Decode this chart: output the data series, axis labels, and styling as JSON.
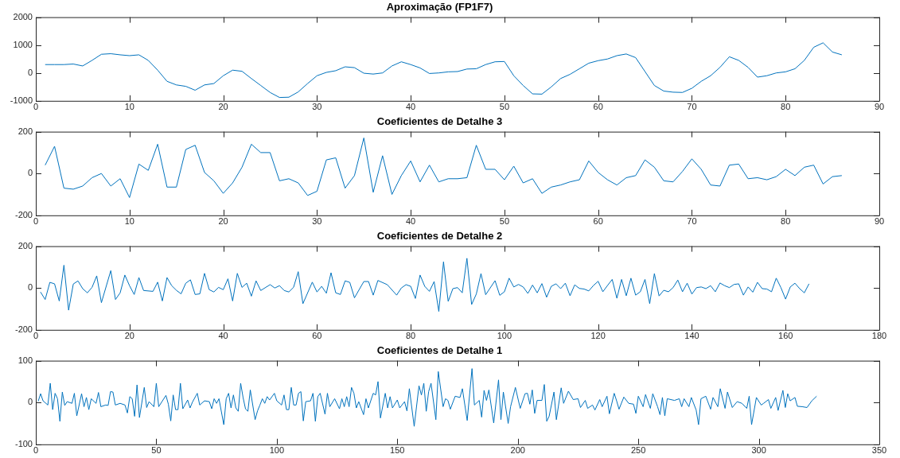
{
  "chart_data": [
    {
      "type": "line",
      "title": "Aproximação (FP1F7)",
      "color": "#0072bd",
      "xlim": [
        0,
        90
      ],
      "xticks": [
        0,
        10,
        20,
        30,
        40,
        50,
        60,
        70,
        80,
        90
      ],
      "ylim": [
        -1000,
        2000
      ],
      "yticks": [
        -1000,
        0,
        1000,
        2000
      ],
      "x": [
        1,
        2,
        3,
        4,
        5,
        6,
        7,
        8,
        9,
        10,
        11,
        12,
        13,
        14,
        15,
        16,
        17,
        18,
        19,
        20,
        21,
        22,
        23,
        24,
        25,
        26,
        27,
        28,
        29,
        30,
        31,
        32,
        33,
        34,
        35,
        36,
        37,
        38,
        39,
        40,
        41,
        42,
        43,
        44,
        45,
        46,
        47,
        48,
        49,
        50,
        51,
        52,
        53,
        54,
        55,
        56,
        57,
        58,
        59,
        60,
        61,
        62,
        63,
        64,
        65,
        66,
        67,
        68,
        69,
        70,
        71,
        72,
        73,
        74,
        75,
        76,
        77,
        78,
        79,
        80,
        81,
        82,
        83,
        84,
        85,
        86
      ],
      "values": [
        300,
        300,
        300,
        320,
        250,
        450,
        670,
        690,
        650,
        620,
        650,
        450,
        100,
        -300,
        -430,
        -480,
        -620,
        -430,
        -380,
        -100,
        100,
        60,
        -200,
        -450,
        -700,
        -880,
        -870,
        -680,
        -380,
        -100,
        20,
        80,
        220,
        190,
        -10,
        -40,
        0,
        250,
        400,
        300,
        180,
        -20,
        0,
        40,
        50,
        140,
        150,
        300,
        400,
        410,
        -100,
        -450,
        -750,
        -760,
        -500,
        -200,
        -50,
        150,
        350,
        440,
        500,
        620,
        680,
        550,
        50,
        -450,
        -650,
        -690,
        -700,
        -550,
        -300,
        -100,
        200,
        580,
        450,
        200,
        -150,
        -100,
        0,
        40,
        150,
        450,
        920,
        1080,
        750,
        650
      ]
    },
    {
      "type": "line",
      "title": "Coeficientes de Detalhe 3",
      "color": "#0072bd",
      "xlim": [
        0,
        90
      ],
      "xticks": [
        0,
        10,
        20,
        30,
        40,
        50,
        60,
        70,
        80,
        90
      ],
      "ylim": [
        -200,
        200
      ],
      "yticks": [
        -200,
        0,
        200
      ],
      "x": [
        1,
        2,
        3,
        4,
        5,
        6,
        7,
        8,
        9,
        10,
        11,
        12,
        13,
        14,
        15,
        16,
        17,
        18,
        19,
        20,
        21,
        22,
        23,
        24,
        25,
        26,
        27,
        28,
        29,
        30,
        31,
        32,
        33,
        34,
        35,
        36,
        37,
        38,
        39,
        40,
        41,
        42,
        43,
        44,
        45,
        46,
        47,
        48,
        49,
        50,
        51,
        52,
        53,
        54,
        55,
        56,
        57,
        58,
        59,
        60,
        61,
        62,
        63,
        64,
        65,
        66,
        67,
        68,
        69,
        70,
        71,
        72,
        73,
        74,
        75,
        76,
        77,
        78,
        79,
        80,
        81,
        82,
        83,
        84,
        85,
        86
      ],
      "values": [
        40,
        130,
        -70,
        -75,
        -60,
        -20,
        0,
        -60,
        -25,
        -115,
        45,
        15,
        140,
        -65,
        -65,
        115,
        135,
        5,
        -35,
        -95,
        -45,
        30,
        140,
        100,
        100,
        -35,
        -25,
        -45,
        -105,
        -85,
        65,
        75,
        -70,
        -10,
        170,
        -90,
        85,
        -100,
        -10,
        60,
        -40,
        40,
        -40,
        -25,
        -25,
        -20,
        135,
        20,
        20,
        -30,
        35,
        -45,
        -25,
        -95,
        -65,
        -55,
        -40,
        -30,
        60,
        5,
        -30,
        -55,
        -20,
        -10,
        65,
        30,
        -35,
        -40,
        10,
        70,
        20,
        -55,
        -60,
        40,
        45,
        -25,
        -20,
        -30,
        -15,
        20,
        -10,
        30,
        40,
        -50,
        -15,
        -10
      ]
    },
    {
      "type": "line",
      "title": "Coeficientes de Detalhe 2",
      "color": "#0072bd",
      "xlim": [
        0,
        180
      ],
      "xticks": [
        0,
        20,
        40,
        60,
        80,
        100,
        120,
        140,
        160,
        180
      ],
      "ylim": [
        -200,
        200
      ],
      "yticks": [
        -200,
        0,
        200
      ],
      "x": [
        1,
        2,
        3,
        4,
        5,
        6,
        7,
        8,
        9,
        10,
        11,
        12,
        13,
        14,
        16,
        17,
        18,
        19,
        20,
        21,
        22,
        23,
        25,
        26,
        27,
        28,
        29,
        30,
        31,
        32,
        33,
        34,
        35,
        36,
        37,
        38,
        39,
        40,
        41,
        42,
        43,
        44,
        45,
        46,
        47,
        48,
        50,
        51,
        52,
        53,
        54,
        55,
        56,
        57,
        59,
        60,
        61,
        62,
        63,
        64,
        65,
        66,
        67,
        68,
        70,
        71,
        72,
        73,
        75,
        77,
        78,
        79,
        80,
        81,
        82,
        83,
        84,
        85,
        86,
        87,
        88,
        89,
        90,
        91,
        92,
        93,
        94,
        95,
        96,
        98,
        99,
        100,
        101,
        102,
        103,
        104,
        105,
        106,
        107,
        108,
        109,
        110,
        111,
        112,
        113,
        114,
        115,
        116,
        117,
        118,
        119,
        120,
        121,
        122,
        123,
        124,
        125,
        126,
        127,
        128,
        129,
        130,
        131,
        132,
        133,
        134,
        135,
        136,
        137,
        138,
        139,
        140,
        141,
        142,
        143,
        144,
        145,
        146,
        147,
        148,
        149,
        150,
        151,
        152,
        153,
        154,
        155,
        156,
        157,
        158,
        159,
        160,
        161,
        162,
        163,
        164,
        165
      ],
      "values": [
        -19,
        -55,
        27,
        20,
        -62,
        109,
        -106,
        19,
        34,
        -3,
        -23,
        3,
        58,
        -70,
        83,
        -55,
        -23,
        62,
        11,
        -31,
        50,
        -12,
        -16,
        28,
        -62,
        50,
        11,
        -11,
        -28,
        23,
        39,
        -31,
        -28,
        70,
        -8,
        -19,
        3,
        -8,
        44,
        -62,
        70,
        3,
        23,
        -39,
        34,
        -12,
        16,
        0,
        11,
        -12,
        -19,
        3,
        78,
        -75,
        28,
        -19,
        8,
        -25,
        73,
        -23,
        -31,
        34,
        27,
        -47,
        31,
        31,
        -34,
        36,
        16,
        -34,
        0,
        16,
        8,
        -50,
        62,
        8,
        -16,
        31,
        -112,
        125,
        -64,
        -3,
        2,
        -23,
        142,
        -79,
        -29,
        69,
        -32,
        35,
        -35,
        -18,
        47,
        5,
        17,
        5,
        -26,
        14,
        -23,
        21,
        -44,
        8,
        20,
        -3,
        23,
        -37,
        15,
        -2,
        -5,
        -14,
        12,
        32,
        -18,
        12,
        41,
        -49,
        41,
        -37,
        47,
        -34,
        -18,
        41,
        -75,
        69,
        -38,
        -11,
        -18,
        2,
        38,
        -18,
        23,
        -29,
        2,
        5,
        -3,
        11,
        -18,
        24,
        11,
        2,
        17,
        20,
        -34,
        5,
        -20,
        27,
        -3,
        -5,
        -18,
        47,
        2,
        -53,
        5,
        23,
        -3,
        -23,
        20
      ]
    },
    {
      "type": "line",
      "title": "Coeficientes de Detalhe 1",
      "color": "#0072bd",
      "xlim": [
        0,
        350
      ],
      "xticks": [
        0,
        50,
        100,
        150,
        200,
        250,
        300,
        350
      ],
      "ylim": [
        -100,
        100
      ],
      "yticks": [
        -100,
        0,
        100
      ],
      "x": [
        1,
        2,
        3,
        5,
        6,
        7,
        8,
        9,
        10,
        11,
        12,
        13,
        15,
        16,
        17,
        19,
        20,
        21,
        22,
        23,
        25,
        26,
        27,
        29,
        30,
        31,
        32,
        33,
        35,
        37,
        38,
        39,
        40,
        41,
        42,
        43,
        45,
        46,
        47,
        49,
        50,
        51,
        54,
        55,
        56,
        57,
        58,
        59,
        60,
        61,
        63,
        64,
        65,
        67,
        68,
        70,
        72,
        73,
        74,
        75,
        76,
        78,
        79,
        80,
        81,
        82,
        83,
        84,
        85,
        86,
        87,
        88,
        89,
        91,
        92,
        93,
        94,
        95,
        96,
        97,
        99,
        100,
        102,
        103,
        104,
        105,
        106,
        107,
        108,
        109,
        110,
        111,
        112,
        114,
        115,
        116,
        117,
        118,
        120,
        121,
        122,
        124,
        126,
        127,
        128,
        129,
        130,
        131,
        132,
        133,
        134,
        136,
        137,
        138,
        140,
        141,
        142,
        143,
        145,
        146,
        147,
        148,
        150,
        151,
        153,
        154,
        155,
        157,
        159,
        160,
        161,
        162,
        163,
        164,
        166,
        167,
        169,
        170,
        171,
        172,
        174,
        176,
        177,
        179,
        181,
        182,
        184,
        185,
        186,
        187,
        188,
        190,
        192,
        193,
        194,
        196,
        197,
        199,
        201,
        203,
        204,
        205,
        206,
        207,
        208,
        210,
        211,
        212,
        213,
        215,
        216,
        218,
        219,
        221,
        223,
        225,
        226,
        228,
        229,
        231,
        232,
        234,
        235,
        237,
        238,
        240,
        241,
        242,
        244,
        246,
        248,
        249,
        250,
        252,
        253,
        255,
        256,
        258,
        259,
        260,
        261,
        262,
        265,
        267,
        268,
        269,
        271,
        272,
        274,
        275,
        276,
        278,
        280,
        281,
        283,
        284,
        286,
        287,
        289,
        291,
        293,
        295,
        296,
        297,
        299,
        301,
        302,
        304,
        305,
        307,
        308,
        310,
        311,
        312,
        313,
        315,
        316,
        318,
        320,
        322,
        324
      ],
      "values": [
        3,
        21,
        4,
        -6,
        46,
        -17,
        22,
        9,
        -45,
        25,
        -7,
        2,
        -2,
        22,
        -32,
        21,
        -10,
        12,
        -17,
        9,
        -2,
        24,
        -10,
        -6,
        -7,
        26,
        25,
        -6,
        -2,
        -6,
        -25,
        14,
        9,
        -33,
        42,
        -36,
        36,
        -12,
        2,
        -10,
        46,
        -10,
        17,
        -4,
        -44,
        18,
        -17,
        -17,
        46,
        -15,
        6,
        -13,
        1,
        22,
        -6,
        4,
        2,
        -15,
        9,
        -2,
        9,
        -53,
        9,
        22,
        -13,
        18,
        -13,
        -21,
        46,
        12,
        -15,
        -21,
        30,
        -41,
        -20,
        -6,
        9,
        -2,
        14,
        6,
        22,
        4,
        -6,
        18,
        -17,
        -17,
        36,
        -6,
        -6,
        22,
        26,
        -44,
        2,
        4,
        22,
        -45,
        14,
        22,
        -28,
        22,
        -10,
        9,
        -15,
        9,
        -10,
        14,
        -10,
        36,
        22,
        -13,
        2,
        -29,
        9,
        -13,
        22,
        18,
        50,
        -37,
        22,
        -13,
        14,
        -13,
        6,
        -13,
        2,
        -20,
        33,
        -57,
        40,
        18,
        46,
        -21,
        26,
        46,
        -41,
        74,
        -10,
        9,
        5,
        -16,
        15,
        12,
        33,
        -43,
        81,
        -6,
        5,
        -35,
        29,
        5,
        30,
        -49,
        54,
        -41,
        25,
        -50,
        -10,
        36,
        -14,
        21,
        22,
        -4,
        30,
        -26,
        5,
        5,
        43,
        -45,
        -33,
        25,
        -41,
        35,
        -2,
        27,
        7,
        9,
        -12,
        5,
        -14,
        -6,
        -18,
        7,
        -10,
        15,
        -27,
        22,
        4,
        -16,
        13,
        -2,
        -4,
        -26,
        15,
        -10,
        19,
        -14,
        21,
        -10,
        -29,
        12,
        -32,
        9,
        5,
        9,
        -10,
        9,
        -10,
        12,
        -18,
        -53,
        9,
        15,
        -16,
        12,
        -10,
        33,
        -14,
        25,
        -12,
        2,
        -2,
        -14,
        15,
        -53,
        12,
        -6,
        -2,
        7,
        -14,
        12,
        -19,
        29,
        -12,
        21,
        4,
        12,
        -9,
        -10,
        -12,
        4,
        15
      ]
    }
  ]
}
